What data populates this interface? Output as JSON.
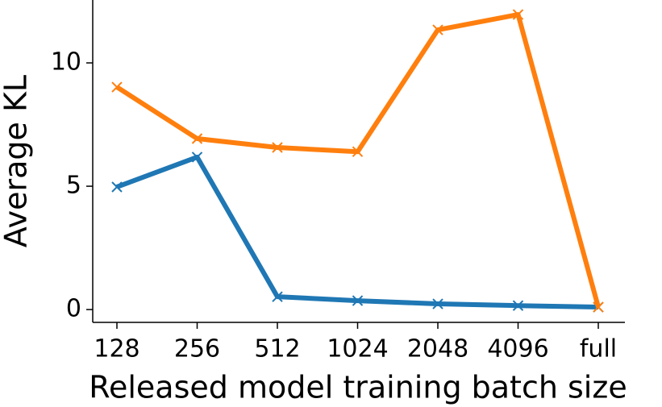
{
  "chart_data": {
    "type": "line",
    "x_label": "Released model training batch size",
    "y_label": "Average KL",
    "categories": [
      "128",
      "256",
      "512",
      "1024",
      "2048",
      "4096",
      "full"
    ],
    "series": [
      {
        "color": "#1f77b4",
        "values": [
          4.97,
          6.18,
          0.52,
          0.36,
          0.23,
          0.16,
          0.1
        ]
      },
      {
        "color": "#ff7f0e",
        "values": [
          9.02,
          6.93,
          6.57,
          6.4,
          11.34,
          11.96,
          0.1
        ]
      }
    ],
    "ylim": [
      -0.52,
      12.55
    ],
    "yticks": [
      0,
      5,
      10
    ]
  }
}
